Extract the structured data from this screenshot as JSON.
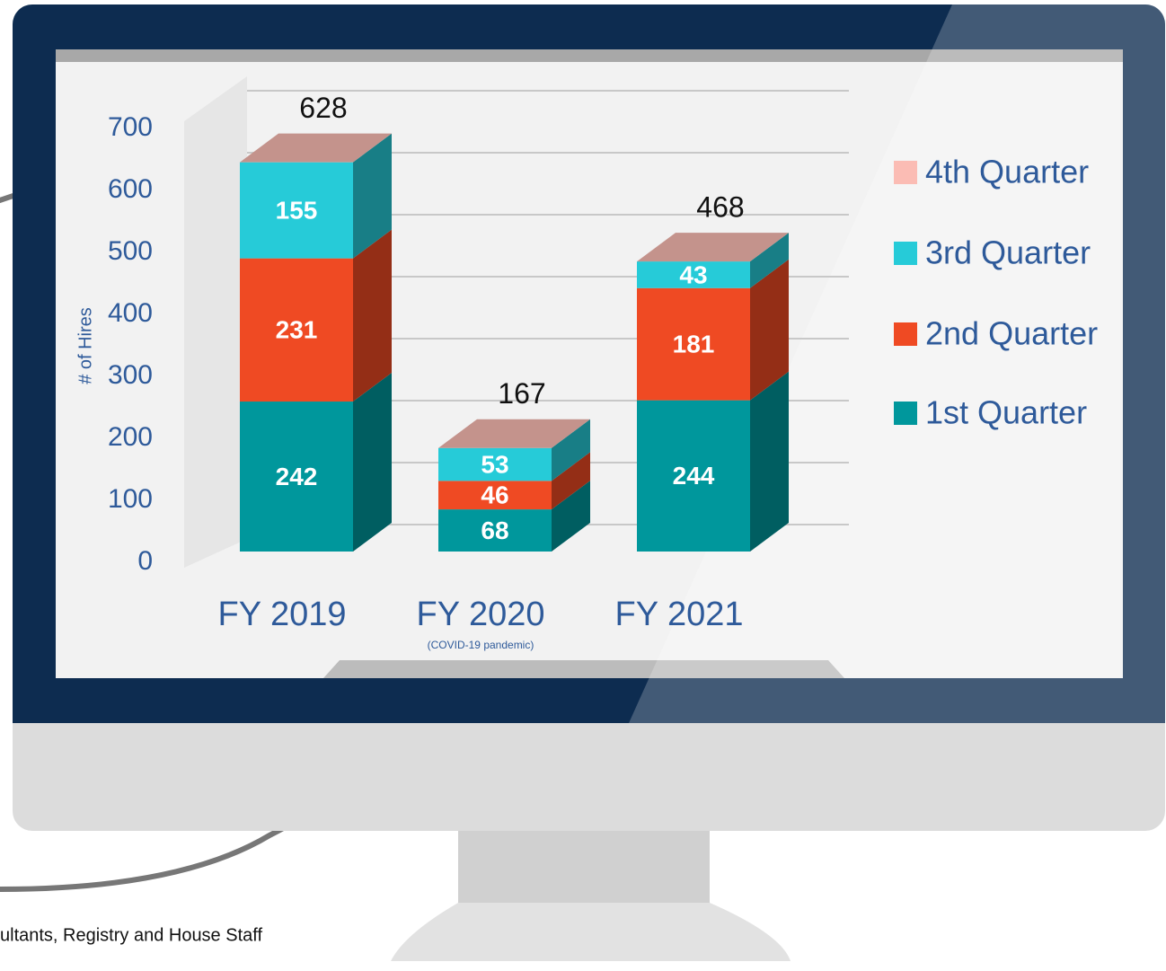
{
  "chart_data": {
    "type": "bar3d-stacked",
    "ylabel": "# of Hires",
    "categories": [
      "FY 2019",
      "FY 2020",
      "FY 2021"
    ],
    "category_notes": [
      null,
      "(COVID-19 pandemic)",
      null
    ],
    "series": [
      {
        "name": "1st Quarter",
        "color": "#00979c",
        "values": [
          242,
          68,
          244
        ]
      },
      {
        "name": "2nd Quarter",
        "color": "#ef4a23",
        "values": [
          231,
          46,
          181
        ]
      },
      {
        "name": "3rd Quarter",
        "color": "#26cbd8",
        "values": [
          155,
          53,
          43
        ]
      },
      {
        "name": "4th Quarter",
        "color": "#fbbcb4",
        "values": [
          0,
          0,
          0
        ]
      }
    ],
    "totals": [
      628,
      167,
      468
    ],
    "ylim": [
      0,
      700
    ],
    "yticks": [
      0,
      100,
      200,
      300,
      400,
      500,
      600,
      700
    ],
    "grid": true,
    "legend": "right"
  },
  "footer": "ultants, Registry and House Staff"
}
